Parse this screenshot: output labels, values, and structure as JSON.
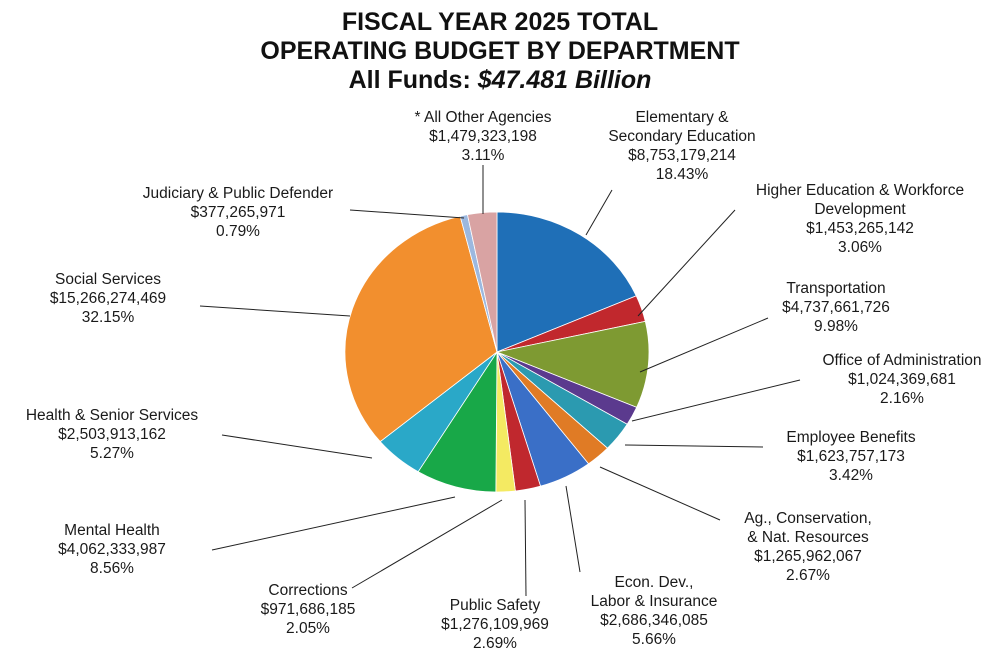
{
  "chart_data": {
    "type": "pie",
    "title": "FISCAL YEAR 2025 TOTAL",
    "subtitle": "OPERATING BUDGET BY DEPARTMENT",
    "total_prefix": "All Funds: ",
    "total": "$47.481 Billion",
    "slices": [
      {
        "label": [
          "Elementary &",
          "Secondary Education"
        ],
        "amount": "$8,753,179,214",
        "percent": "18.43%",
        "value": 18.43,
        "color": "#1f6fb7"
      },
      {
        "label": [
          "Higher Education & Workforce",
          "Development"
        ],
        "amount": "$1,453,265,142",
        "percent": "3.06%",
        "value": 3.06,
        "color": "#c1282d"
      },
      {
        "label": [
          "Transportation"
        ],
        "amount": "$4,737,661,726",
        "percent": "9.98%",
        "value": 9.98,
        "color": "#7e9a32"
      },
      {
        "label": [
          "Office of Administration"
        ],
        "amount": "$1,024,369,681",
        "percent": "2.16%",
        "value": 2.16,
        "color": "#5b3a8e"
      },
      {
        "label": [
          "Employee Benefits"
        ],
        "amount": "$1,623,757,173",
        "percent": "3.42%",
        "value": 3.42,
        "color": "#2b9ab0"
      },
      {
        "label": [
          "Ag., Conservation,",
          "& Nat. Resources"
        ],
        "amount": "$1,265,962,067",
        "percent": "2.67%",
        "value": 2.67,
        "color": "#e07b25"
      },
      {
        "label": [
          "Econ. Dev.,",
          "Labor & Insurance"
        ],
        "amount": "$2,686,346,085",
        "percent": "5.66%",
        "value": 5.66,
        "color": "#3a6fc7"
      },
      {
        "label": [
          "Public Safety"
        ],
        "amount": "$1,276,109,969",
        "percent": "2.69%",
        "value": 2.69,
        "color": "#c0282e"
      },
      {
        "label": [
          "Corrections"
        ],
        "amount": "$971,686,185",
        "percent": "2.05%",
        "value": 2.05,
        "color": "#f4ea62"
      },
      {
        "label": [
          "Mental Health"
        ],
        "amount": "$4,062,333,987",
        "percent": "8.56%",
        "value": 8.56,
        "color": "#18a848"
      },
      {
        "label": [
          "Health & Senior Services"
        ],
        "amount": "$2,503,913,162",
        "percent": "5.27%",
        "value": 5.27,
        "color": "#2aa8c8"
      },
      {
        "label": [
          "Social Services"
        ],
        "amount": "$15,266,274,469",
        "percent": "32.15%",
        "value": 32.15,
        "color": "#f28f2e"
      },
      {
        "label": [
          "Judiciary & Public Defender"
        ],
        "amount": "$377,265,971",
        "percent": "0.79%",
        "value": 0.79,
        "color": "#9cb8df"
      },
      {
        "label": [
          "* All Other Agencies"
        ],
        "amount": "$1,479,323,198",
        "percent": "3.11%",
        "value": 3.11,
        "color": "#d9a3a3"
      }
    ]
  }
}
